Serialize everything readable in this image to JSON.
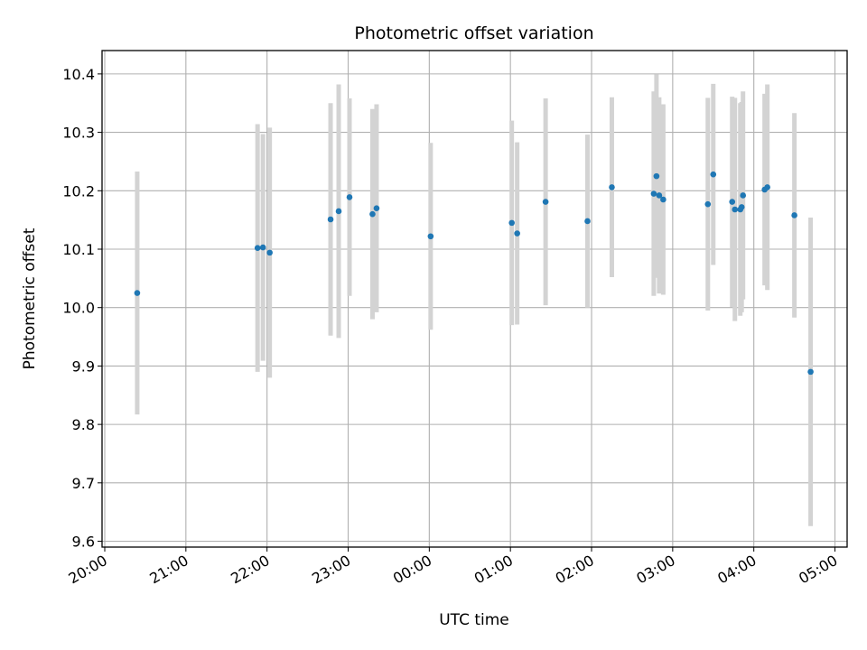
{
  "chart_data": {
    "type": "scatter",
    "title": "Photometric offset variation",
    "xlabel": "UTC time",
    "ylabel": "Photometric offset",
    "x_tick_labels": [
      "20:00",
      "21:00",
      "22:00",
      "23:00",
      "00:00",
      "01:00",
      "02:00",
      "03:00",
      "04:00",
      "05:00"
    ],
    "y_tick_labels": [
      "9.6",
      "9.7",
      "9.8",
      "9.9",
      "10.0",
      "10.1",
      "10.2",
      "10.3",
      "10.4"
    ],
    "xlim": [
      "19:58",
      "05:09"
    ],
    "ylim": [
      9.59,
      10.44
    ],
    "grid": true,
    "point_color": "#1f77b4",
    "errorbar_color": "#d3d3d3",
    "series": [
      {
        "points": [
          {
            "x": "20:24",
            "y": 10.025,
            "err": 0.208
          },
          {
            "x": "21:53",
            "y": 10.102,
            "err": 0.212
          },
          {
            "x": "21:57",
            "y": 10.103,
            "err": 0.194
          },
          {
            "x": "22:02",
            "y": 10.094,
            "err": 0.214
          },
          {
            "x": "22:47",
            "y": 10.151,
            "err": 0.199
          },
          {
            "x": "22:53",
            "y": 10.165,
            "err": 0.217
          },
          {
            "x": "23:01",
            "y": 10.189,
            "err": 0.169
          },
          {
            "x": "23:18",
            "y": 10.16,
            "err": 0.18
          },
          {
            "x": "23:21",
            "y": 10.17,
            "err": 0.178
          },
          {
            "x": "00:01",
            "y": 10.122,
            "err": 0.16
          },
          {
            "x": "01:01",
            "y": 10.145,
            "err": 0.175
          },
          {
            "x": "01:05",
            "y": 10.127,
            "err": 0.156
          },
          {
            "x": "01:26",
            "y": 10.181,
            "err": 0.177
          },
          {
            "x": "01:57",
            "y": 10.148,
            "err": 0.148
          },
          {
            "x": "02:15",
            "y": 10.206,
            "err": 0.154
          },
          {
            "x": "02:46",
            "y": 10.195,
            "err": 0.175
          },
          {
            "x": "02:48",
            "y": 10.225,
            "err": 0.174
          },
          {
            "x": "02:50",
            "y": 10.192,
            "err": 0.168
          },
          {
            "x": "02:53",
            "y": 10.185,
            "err": 0.163
          },
          {
            "x": "03:26",
            "y": 10.177,
            "err": 0.182
          },
          {
            "x": "03:30",
            "y": 10.228,
            "err": 0.155
          },
          {
            "x": "03:44",
            "y": 10.181,
            "err": 0.18
          },
          {
            "x": "03:46",
            "y": 10.168,
            "err": 0.191
          },
          {
            "x": "03:50",
            "y": 10.168,
            "err": 0.182
          },
          {
            "x": "03:51",
            "y": 10.172,
            "err": 0.18
          },
          {
            "x": "03:52",
            "y": 10.192,
            "err": 0.178
          },
          {
            "x": "04:08",
            "y": 10.202,
            "err": 0.164
          },
          {
            "x": "04:10",
            "y": 10.206,
            "err": 0.176
          },
          {
            "x": "04:30",
            "y": 10.158,
            "err": 0.175
          },
          {
            "x": "04:42",
            "y": 9.89,
            "err": 0.264
          }
        ]
      }
    ]
  }
}
